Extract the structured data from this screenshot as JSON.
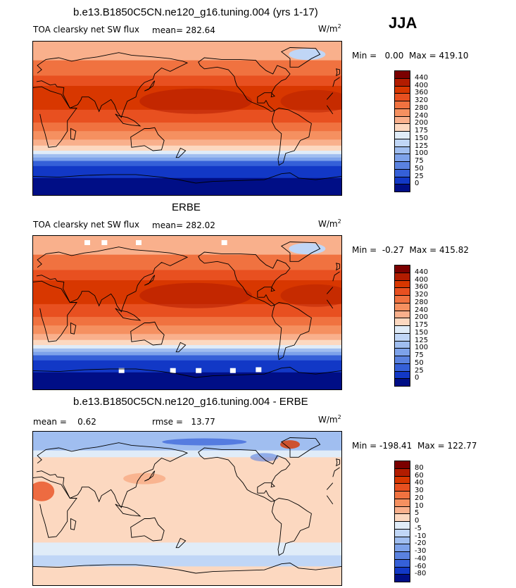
{
  "season": "JJA",
  "panels": [
    {
      "title": "b.e13.B1850C5CN.ne120_g16.tuning.004 (yrs 1-17)",
      "variable": "TOA clearsky net SW flux",
      "mean_label": "mean=",
      "mean_value": "282.64",
      "units_base": "W/m",
      "units_exp": "2",
      "min_label": "Min =",
      "min_value": "0.00",
      "max_label": "Max =",
      "max_value": "419.10",
      "colorbar": {
        "labels": [
          "440",
          "400",
          "360",
          "320",
          "280",
          "240",
          "200",
          "175",
          "150",
          "125",
          "100",
          "75",
          "50",
          "25",
          "0"
        ],
        "colors": [
          "#7b0000",
          "#b21c00",
          "#d83700",
          "#e85020",
          "#f07240",
          "#f59060",
          "#f9b08c",
          "#fcd8c0",
          "#e0ecf8",
          "#c0d6f6",
          "#a0bef0",
          "#7da2ea",
          "#5a82e0",
          "#3560d8",
          "#1238c6",
          "#000e86"
        ]
      }
    },
    {
      "title": "ERBE",
      "variable": "TOA clearsky net SW flux",
      "mean_label": "mean=",
      "mean_value": "282.02",
      "units_base": "W/m",
      "units_exp": "2",
      "min_label": "Min =",
      "min_value": "-0.27",
      "max_label": "Max =",
      "max_value": "415.82",
      "colorbar": {
        "labels": [
          "440",
          "400",
          "360",
          "320",
          "280",
          "240",
          "200",
          "175",
          "150",
          "125",
          "100",
          "75",
          "50",
          "25",
          "0"
        ],
        "colors": [
          "#7b0000",
          "#b21c00",
          "#d83700",
          "#e85020",
          "#f07240",
          "#f59060",
          "#f9b08c",
          "#fcd8c0",
          "#e0ecf8",
          "#c0d6f6",
          "#a0bef0",
          "#7da2ea",
          "#5a82e0",
          "#3560d8",
          "#1238c6",
          "#000e86"
        ]
      }
    },
    {
      "title": "b.e13.B1850C5CN.ne120_g16.tuning.004 - ERBE",
      "variable": "",
      "mean_label": "mean =",
      "mean_value": "0.62",
      "rmse_label": "rmse =",
      "rmse_value": "13.77",
      "units_base": "W/m",
      "units_exp": "2",
      "min_label": "Min =",
      "min_value": "-198.41",
      "max_label": "Max =",
      "max_value": "122.77",
      "colorbar": {
        "labels": [
          "80",
          "60",
          "40",
          "30",
          "20",
          "10",
          "5",
          "0",
          "-5",
          "-10",
          "-20",
          "-30",
          "-40",
          "-60",
          "-80"
        ],
        "colors": [
          "#7b0000",
          "#b21c00",
          "#d83700",
          "#e85020",
          "#f07240",
          "#f59060",
          "#f9b08c",
          "#fcd8c0",
          "#e0ecf8",
          "#c0d6f6",
          "#a0bef0",
          "#7da2ea",
          "#5a82e0",
          "#3560d8",
          "#1238c6",
          "#000e86"
        ]
      }
    }
  ],
  "chart_data": [
    {
      "type": "heatmap",
      "title": "b.e13.B1850C5CN.ne120_g16.tuning.004 (yrs 1-17)",
      "subtitle": "TOA clearsky net SW flux",
      "season": "JJA",
      "units": "W/m2",
      "mean": 282.64,
      "min": 0.0,
      "max": 419.1,
      "levels": [
        0,
        25,
        50,
        75,
        100,
        125,
        150,
        175,
        200,
        240,
        280,
        320,
        360,
        400,
        440
      ],
      "lat_band_values": [
        210,
        330,
        380,
        390,
        370,
        330,
        290,
        220,
        140,
        60,
        10
      ]
    },
    {
      "type": "heatmap",
      "title": "ERBE",
      "subtitle": "TOA clearsky net SW flux",
      "season": "JJA",
      "units": "W/m2",
      "mean": 282.02,
      "min": -0.27,
      "max": 415.82,
      "levels": [
        0,
        25,
        50,
        75,
        100,
        125,
        150,
        175,
        200,
        240,
        280,
        320,
        360,
        400,
        440
      ],
      "lat_band_values": [
        210,
        325,
        378,
        388,
        368,
        328,
        288,
        218,
        138,
        58,
        8
      ]
    },
    {
      "type": "heatmap",
      "title": "b.e13.B1850C5CN.ne120_g16.tuning.004 - ERBE",
      "season": "JJA",
      "units": "W/m2",
      "mean": 0.62,
      "rmse": 13.77,
      "min": -198.41,
      "max": 122.77,
      "levels": [
        -80,
        -60,
        -40,
        -30,
        -20,
        -10,
        -5,
        0,
        5,
        10,
        20,
        30,
        40,
        60,
        80
      ]
    }
  ]
}
